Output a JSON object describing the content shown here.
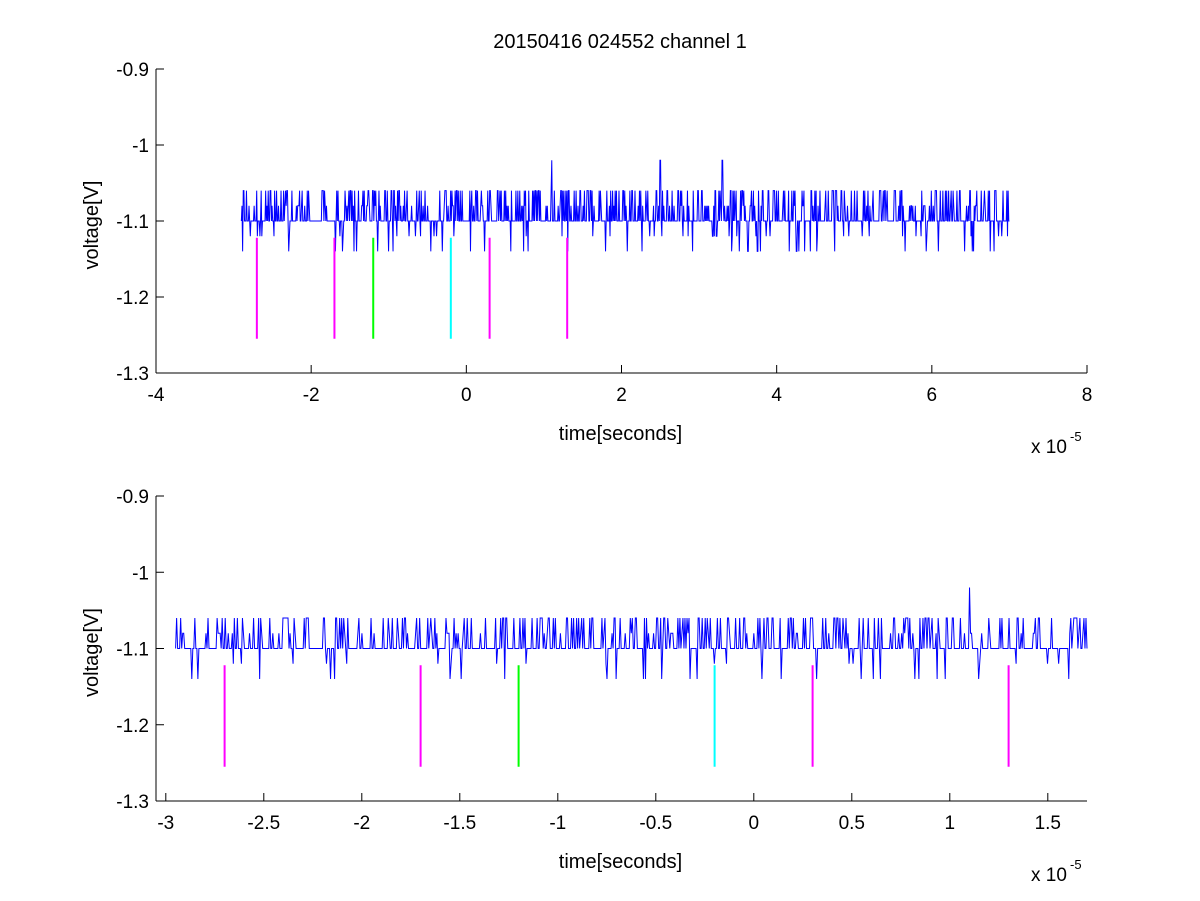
{
  "figure": {
    "title": "20150416 024552 channel 1"
  },
  "chart_data": [
    {
      "type": "line",
      "title": "20150416 024552 channel 1",
      "xlabel": "time[seconds]",
      "ylabel": "voltage[V]",
      "x_multiplier": "x 10",
      "x_exponent": "-5",
      "xlim": [
        -4,
        8
      ],
      "ylim": [
        -1.3,
        -0.9
      ],
      "xticks": [
        -4,
        -2,
        0,
        2,
        4,
        6,
        8
      ],
      "xtick_labels": [
        "-4",
        "-2",
        "0",
        "2",
        "4",
        "6",
        "8"
      ],
      "yticks": [
        -1.3,
        -1.2,
        -1.1,
        -1.0,
        -0.9
      ],
      "ytick_labels": [
        "-1.3",
        "-1.2",
        "-1.1",
        "-1",
        "-0.9"
      ],
      "grid": false,
      "series": [
        {
          "color": "#0000ff",
          "x_range": [
            -2.9,
            7.0
          ],
          "baseline": -1.1,
          "levels": [
            -1.14,
            -1.12,
            -1.1,
            -1.08,
            -1.06
          ],
          "spikes": [
            [
              1.1,
              -1.02
            ],
            [
              2.5,
              -1.02
            ],
            [
              3.3,
              -1.02
            ]
          ]
        }
      ],
      "markers": [
        {
          "x": -2.7,
          "y0": -1.255,
          "y1": -1.122,
          "color": "#ff00ff"
        },
        {
          "x": -1.7,
          "y0": -1.255,
          "y1": -1.122,
          "color": "#ff00ff"
        },
        {
          "x": -1.2,
          "y0": -1.255,
          "y1": -1.122,
          "color": "#00ff00"
        },
        {
          "x": -0.2,
          "y0": -1.255,
          "y1": -1.122,
          "color": "#00ffff"
        },
        {
          "x": 0.3,
          "y0": -1.255,
          "y1": -1.122,
          "color": "#ff00ff"
        },
        {
          "x": 1.3,
          "y0": -1.255,
          "y1": -1.122,
          "color": "#ff00ff"
        }
      ]
    },
    {
      "type": "line",
      "title": "",
      "xlabel": "time[seconds]",
      "ylabel": "voltage[V]",
      "x_multiplier": "x 10",
      "x_exponent": "-5",
      "xlim": [
        -3.05,
        1.7
      ],
      "ylim": [
        -1.3,
        -0.9
      ],
      "xticks": [
        -3,
        -2.5,
        -2,
        -1.5,
        -1,
        -0.5,
        0,
        0.5,
        1,
        1.5
      ],
      "xtick_labels": [
        "-3",
        "-2.5",
        "-2",
        "-1.5",
        "-1",
        "-0.5",
        "0",
        "0.5",
        "1",
        "1.5"
      ],
      "yticks": [
        -1.3,
        -1.2,
        -1.1,
        -1.0,
        -0.9
      ],
      "ytick_labels": [
        "-1.3",
        "-1.2",
        "-1.1",
        "-1",
        "-0.9"
      ],
      "grid": false,
      "series": [
        {
          "color": "#0000ff",
          "x_range": [
            -2.95,
            1.7
          ],
          "baseline": -1.1,
          "levels": [
            -1.14,
            -1.12,
            -1.1,
            -1.08,
            -1.06
          ],
          "spikes": [
            [
              1.1,
              -1.02
            ]
          ]
        }
      ],
      "markers": [
        {
          "x": -2.7,
          "y0": -1.255,
          "y1": -1.122,
          "color": "#ff00ff"
        },
        {
          "x": -1.7,
          "y0": -1.255,
          "y1": -1.122,
          "color": "#ff00ff"
        },
        {
          "x": -1.2,
          "y0": -1.255,
          "y1": -1.122,
          "color": "#00ff00"
        },
        {
          "x": -0.2,
          "y0": -1.255,
          "y1": -1.122,
          "color": "#00ffff"
        },
        {
          "x": 0.3,
          "y0": -1.255,
          "y1": -1.122,
          "color": "#ff00ff"
        },
        {
          "x": 1.3,
          "y0": -1.255,
          "y1": -1.122,
          "color": "#ff00ff"
        }
      ]
    }
  ]
}
